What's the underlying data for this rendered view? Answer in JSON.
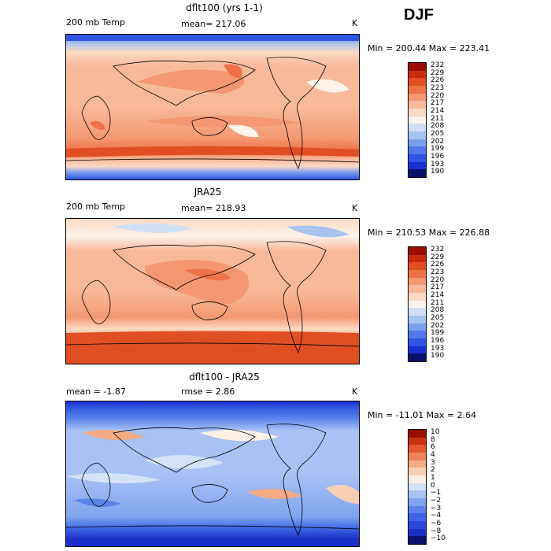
{
  "season": "DJF",
  "colors": {
    "full": [
      "#08126a",
      "#1a2fd0",
      "#2e55e4",
      "#4f7ae8",
      "#7aa0ec",
      "#a7c3f0",
      "#cfe0f6",
      "#fdf3ea",
      "#fbd9c3",
      "#f8b99a",
      "#f49772",
      "#ee7247",
      "#e04f22",
      "#c92c0c",
      "#9a0e00"
    ],
    "diff": [
      "#08126a",
      "#1c2fc4",
      "#2a49d8",
      "#3c64e4",
      "#5a84ea",
      "#7fa4ef",
      "#a8c2f3",
      "#d3e2f8",
      "#fcefe4",
      "#f9cfb4",
      "#f4ab86",
      "#ed835a",
      "#e2592f",
      "#c93312",
      "#9a0e00"
    ]
  },
  "panels": [
    {
      "title": "dflt100 (yrs 1-1)",
      "variable": "200 mb Temp",
      "stat": "mean= 217.06",
      "units": "K",
      "minmax": "Min = 200.44 Max = 223.41",
      "colorbar_labels": [
        "232",
        "229",
        "226",
        "223",
        "220",
        "217",
        "214",
        "211",
        "208",
        "205",
        "202",
        "199",
        "196",
        "193",
        "190"
      ]
    },
    {
      "title": "JRA25",
      "variable": "200 mb Temp",
      "stat": "mean= 218.93",
      "units": "K",
      "minmax": "Min = 210.53 Max = 226.88",
      "colorbar_labels": [
        "232",
        "229",
        "226",
        "223",
        "220",
        "217",
        "214",
        "211",
        "208",
        "205",
        "202",
        "199",
        "196",
        "193",
        "190"
      ]
    },
    {
      "title": "dflt100 - JRA25",
      "variable": "mean =  -1.87",
      "stat": "rmse =   2.86",
      "units": "K",
      "minmax": "Min = -11.01 Max =   2.64",
      "colorbar_labels": [
        "10",
        "8",
        "6",
        "4",
        "3",
        "2",
        "1",
        "0",
        "−1",
        "−2",
        "−3",
        "−4",
        "−6",
        "−8",
        "−10"
      ]
    }
  ]
}
